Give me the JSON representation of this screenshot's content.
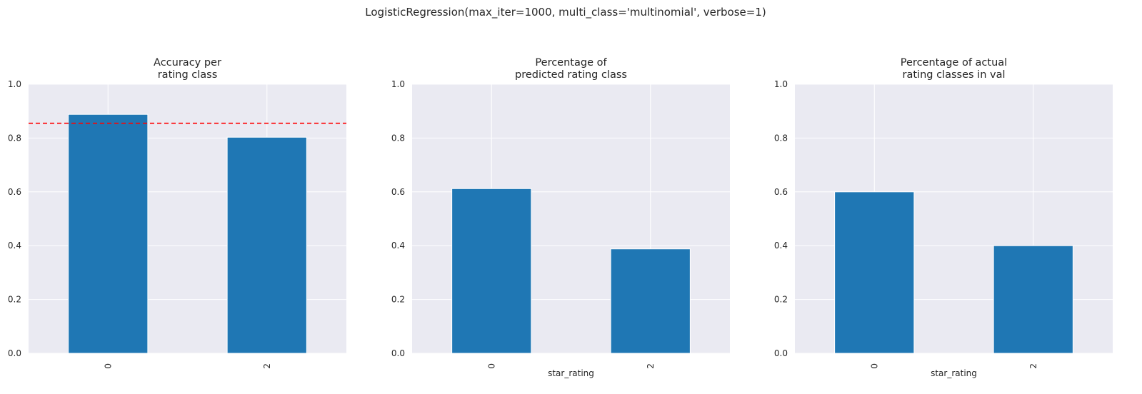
{
  "figure": {
    "suptitle": "LogisticRegression(max_iter=1000, multi_class='multinomial', verbose=1)"
  },
  "chart_data": [
    {
      "type": "bar",
      "title_lines": [
        "Accuracy per",
        " rating class"
      ],
      "categories": [
        "0",
        "2"
      ],
      "values": [
        0.888,
        0.803
      ],
      "xlabel": "",
      "ylabel": "",
      "ylim": [
        0,
        1.0
      ],
      "yticks": [
        "0.0",
        "0.2",
        "0.4",
        "0.6",
        "0.8",
        "1.0"
      ],
      "hline": {
        "value": 0.855,
        "color": "#ff0000",
        "style": "dashed"
      },
      "grid": true,
      "bar_color": "#1f77b4"
    },
    {
      "type": "bar",
      "title_lines": [
        "Percentage of",
        "predicted rating class"
      ],
      "categories": [
        "0",
        "2"
      ],
      "values": [
        0.612,
        0.388
      ],
      "xlabel": "star_rating",
      "ylabel": "",
      "ylim": [
        0,
        1.0
      ],
      "yticks": [
        "0.0",
        "0.2",
        "0.4",
        "0.6",
        "0.8",
        "1.0"
      ],
      "grid": true,
      "bar_color": "#1f77b4"
    },
    {
      "type": "bar",
      "title_lines": [
        "Percentage of actual",
        " rating classes in val"
      ],
      "categories": [
        "0",
        "2"
      ],
      "values": [
        0.6,
        0.4
      ],
      "xlabel": "star_rating",
      "ylabel": "",
      "ylim": [
        0,
        1.0
      ],
      "yticks": [
        "0.0",
        "0.2",
        "0.4",
        "0.6",
        "0.8",
        "1.0"
      ],
      "grid": true,
      "bar_color": "#1f77b4"
    }
  ],
  "colors": {
    "axes_bg": "#eaeaf2",
    "grid": "#ffffff",
    "bar": "#1f77b4",
    "hline": "#ff0000"
  }
}
